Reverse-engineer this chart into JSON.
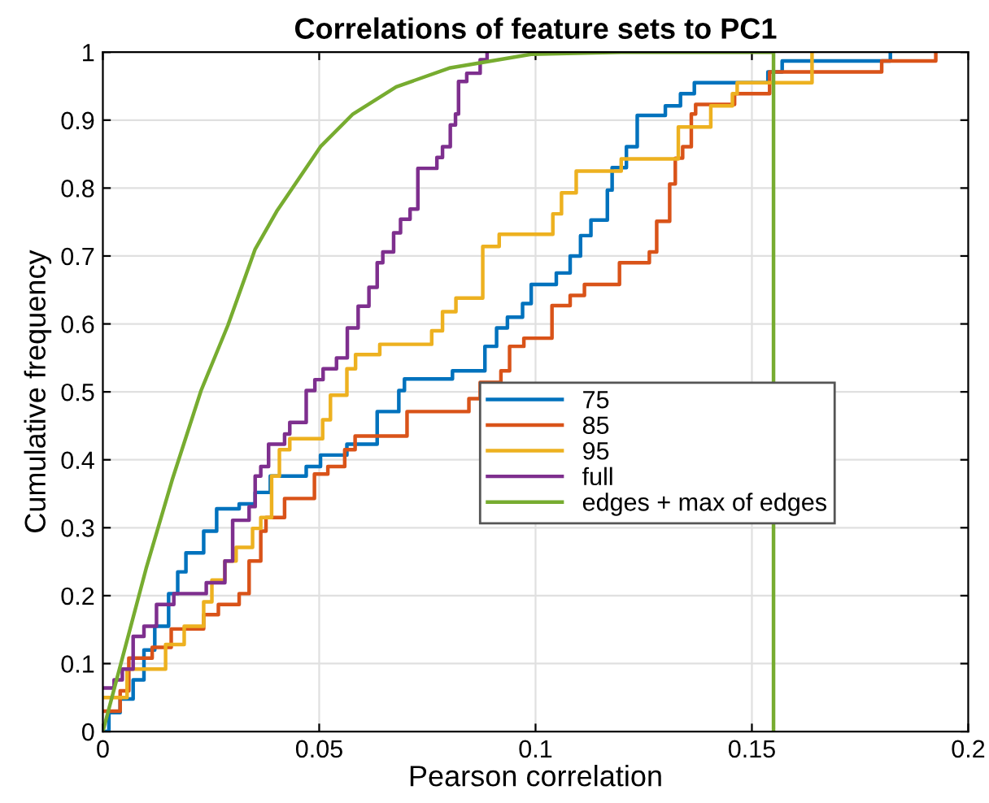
{
  "chart_data": {
    "type": "step",
    "title": "Correlations of feature sets to PC1",
    "xlabel": "Pearson correlation",
    "ylabel": "Cumulative frequency",
    "xlim": [
      0,
      0.2
    ],
    "xticks": [
      0,
      0.05,
      0.1,
      0.15,
      0.2
    ],
    "ylim": [
      0,
      1
    ],
    "yticks": [
      0,
      0.1,
      0.2,
      0.3,
      0.4,
      0.5,
      0.6,
      0.7,
      0.8,
      0.9,
      1
    ],
    "grid": true,
    "legend": "right",
    "series": [
      {
        "name": "75",
        "color": "#0072bd",
        "x": [
          0,
          0.0014,
          0.004,
          0.007,
          0.0095,
          0.012,
          0.0152,
          0.0173,
          0.0192,
          0.0233,
          0.0263,
          0.0315,
          0.0352,
          0.0387,
          0.047,
          0.0503,
          0.0564,
          0.0634,
          0.0684,
          0.0697,
          0.0808,
          0.0883,
          0.091,
          0.0935,
          0.097,
          0.099,
          0.1048,
          0.108,
          0.1104,
          0.1128,
          0.1166,
          0.1177,
          0.121,
          0.1235,
          0.13,
          0.1335,
          0.1367,
          0.1537,
          0.157,
          0.182
        ],
        "values": [
          0,
          0.028,
          0.048,
          0.076,
          0.12,
          0.155,
          0.203,
          0.235,
          0.263,
          0.295,
          0.328,
          0.335,
          0.352,
          0.376,
          0.39,
          0.407,
          0.423,
          0.471,
          0.502,
          0.519,
          0.531,
          0.567,
          0.594,
          0.61,
          0.63,
          0.658,
          0.675,
          0.7,
          0.73,
          0.753,
          0.797,
          0.83,
          0.861,
          0.907,
          0.921,
          0.939,
          0.955,
          0.971,
          0.987,
          1.0
        ]
      },
      {
        "name": "85",
        "color": "#d95319",
        "x": [
          0,
          0.004,
          0.006,
          0.0114,
          0.0158,
          0.0233,
          0.0267,
          0.0315,
          0.0338,
          0.0365,
          0.0377,
          0.042,
          0.0489,
          0.052,
          0.0559,
          0.0583,
          0.0703,
          0.0846,
          0.0872,
          0.092,
          0.094,
          0.0973,
          0.1038,
          0.108,
          0.1113,
          0.1194,
          0.1263,
          0.128,
          0.131,
          0.1323,
          0.134,
          0.136,
          0.137,
          0.146,
          0.1541,
          0.18,
          0.1925
        ],
        "values": [
          0.03,
          0.06,
          0.108,
          0.124,
          0.151,
          0.172,
          0.187,
          0.203,
          0.251,
          0.295,
          0.315,
          0.343,
          0.379,
          0.39,
          0.415,
          0.435,
          0.471,
          0.49,
          0.514,
          0.531,
          0.567,
          0.579,
          0.627,
          0.642,
          0.658,
          0.69,
          0.706,
          0.751,
          0.806,
          0.844,
          0.861,
          0.909,
          0.923,
          0.939,
          0.971,
          0.987,
          1.0
        ]
      },
      {
        "name": "95",
        "color": "#edb120",
        "x": [
          0,
          0.0056,
          0.0145,
          0.0188,
          0.0233,
          0.0252,
          0.0282,
          0.0308,
          0.0346,
          0.0365,
          0.039,
          0.0408,
          0.0432,
          0.0508,
          0.0526,
          0.0564,
          0.0584,
          0.064,
          0.076,
          0.0785,
          0.0816,
          0.0878,
          0.0916,
          0.104,
          0.106,
          0.1094,
          0.1198,
          0.133,
          0.1405,
          0.1455,
          0.1466,
          0.1639
        ],
        "values": [
          0.05,
          0.092,
          0.128,
          0.155,
          0.191,
          0.223,
          0.251,
          0.271,
          0.299,
          0.315,
          0.376,
          0.415,
          0.431,
          0.459,
          0.495,
          0.534,
          0.555,
          0.57,
          0.59,
          0.618,
          0.638,
          0.714,
          0.732,
          0.762,
          0.793,
          0.825,
          0.843,
          0.89,
          0.921,
          0.939,
          0.955,
          1.0
        ]
      },
      {
        "name": "full",
        "color": "#7e2f8e",
        "x": [
          0,
          0.0026,
          0.0045,
          0.007,
          0.0095,
          0.0124,
          0.0164,
          0.0239,
          0.0282,
          0.03,
          0.0338,
          0.0352,
          0.0365,
          0.0383,
          0.042,
          0.0432,
          0.047,
          0.049,
          0.0509,
          0.054,
          0.0565,
          0.059,
          0.0615,
          0.0634,
          0.0647,
          0.0672,
          0.0688,
          0.071,
          0.0728,
          0.0772,
          0.0785,
          0.0803,
          0.0815,
          0.0822,
          0.0841,
          0.0872,
          0.0888
        ],
        "values": [
          0.064,
          0.076,
          0.092,
          0.14,
          0.155,
          0.187,
          0.203,
          0.219,
          0.251,
          0.311,
          0.331,
          0.376,
          0.39,
          0.423,
          0.438,
          0.455,
          0.502,
          0.518,
          0.534,
          0.55,
          0.594,
          0.626,
          0.654,
          0.69,
          0.706,
          0.734,
          0.754,
          0.769,
          0.829,
          0.845,
          0.861,
          0.893,
          0.909,
          0.957,
          0.969,
          0.989,
          1.0
        ]
      },
      {
        "name": "edges + max of edges",
        "color": "#77ac30",
        "type": "line",
        "x": [
          0,
          0.004,
          0.01,
          0.016,
          0.0227,
          0.0289,
          0.0352,
          0.0402,
          0.0503,
          0.0578,
          0.0678,
          0.0803,
          0.099,
          0.12,
          0.155,
          0.155
        ],
        "values": [
          0,
          0.096,
          0.24,
          0.37,
          0.502,
          0.598,
          0.71,
          0.766,
          0.861,
          0.909,
          0.949,
          0.977,
          0.997,
          1.0,
          1.0,
          0
        ]
      }
    ]
  }
}
